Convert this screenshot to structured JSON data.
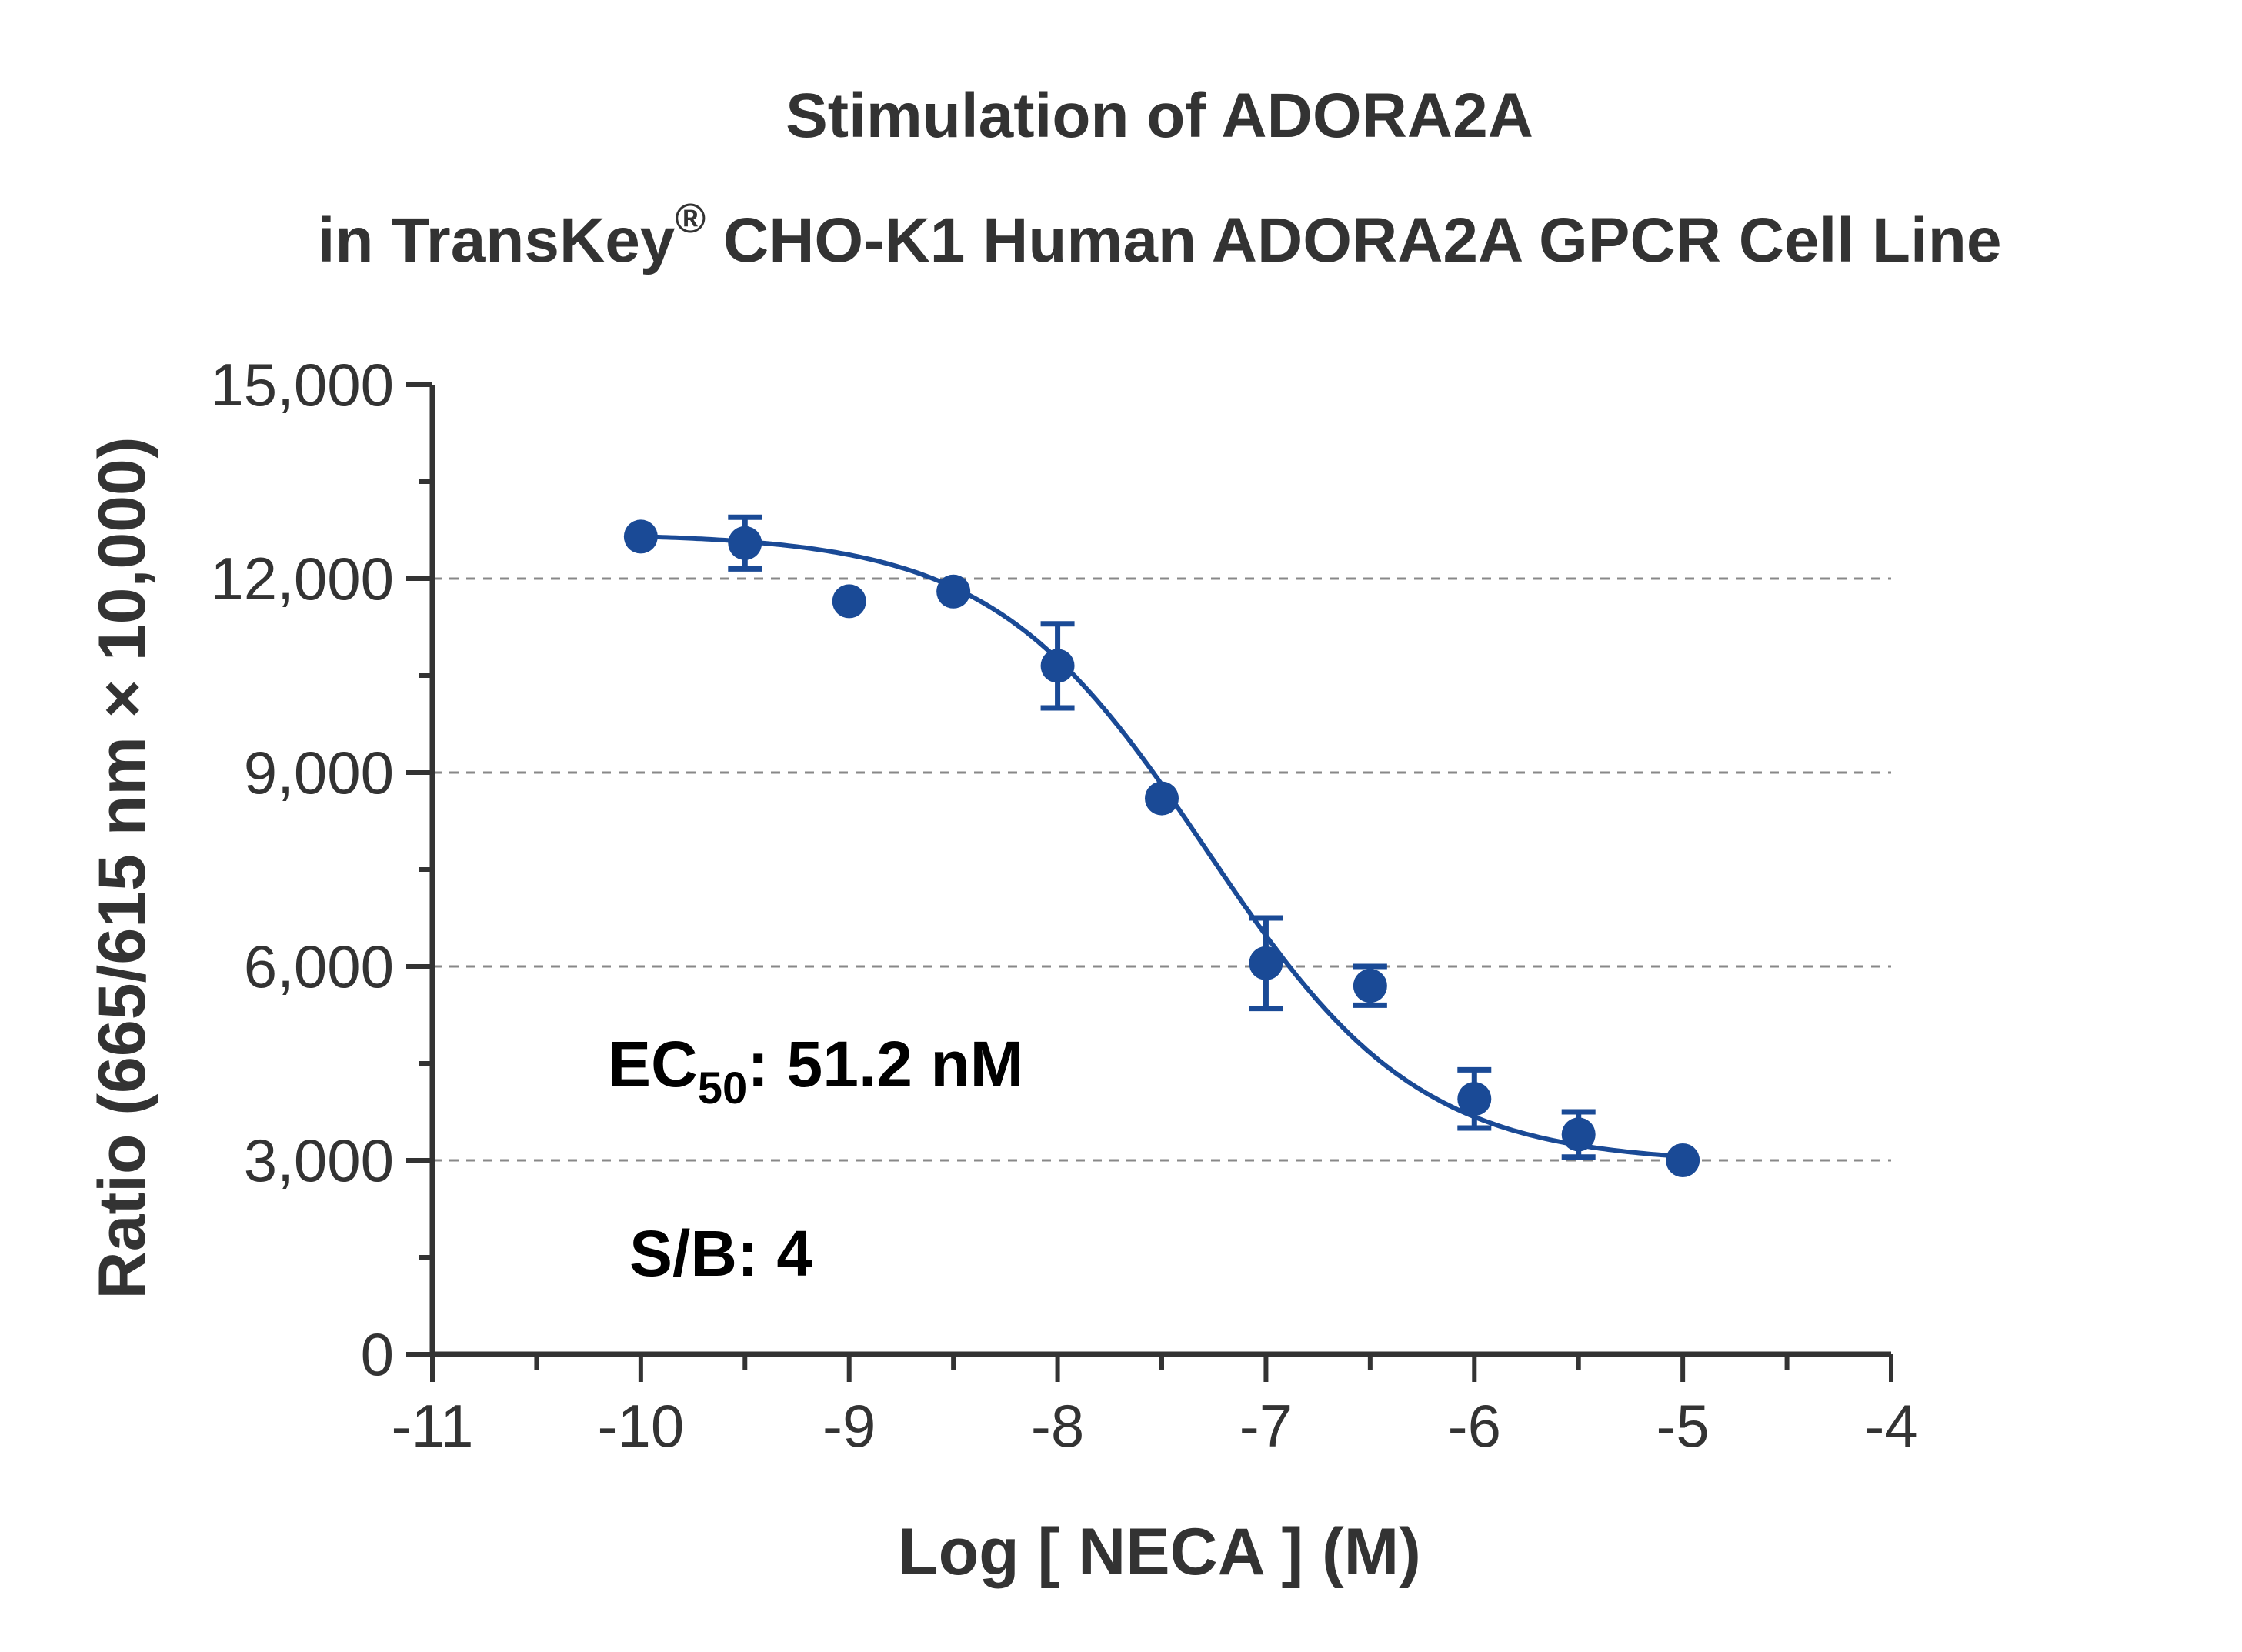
{
  "chart_data": {
    "type": "scatter",
    "title_line1": "Stimulation of  ADORA2A",
    "title_line2_pre": "in TransKey",
    "title_line2_sup": "®",
    "title_line2_post": " CHO-K1 Human ADORA2A GPCR Cell Line",
    "xlabel": "Log [ NECA ]  (M)",
    "ylabel": "Ratio (665/615 nm × 10,000)",
    "xlim": [
      -11,
      -4
    ],
    "ylim": [
      0,
      15000
    ],
    "xticks": [
      -11,
      -10,
      -9,
      -8,
      -7,
      -6,
      -5,
      -4
    ],
    "xtick_labels": [
      "-11",
      "-10",
      "-9",
      "-8",
      "-7",
      "-6",
      "-5",
      "-4"
    ],
    "yticks": [
      0,
      3000,
      6000,
      9000,
      12000,
      15000
    ],
    "ytick_labels": [
      "0",
      "3,000",
      "6,000",
      "9,000",
      "12,000",
      "15,000"
    ],
    "grid_y": [
      3000,
      6000,
      9000,
      12000
    ],
    "series": [
      {
        "color": "#1a4a96",
        "x": [
          -10,
          -9.5,
          -9,
          -8.5,
          -8,
          -7.5,
          -7,
          -6.5,
          -6,
          -5.5,
          -5
        ],
        "y": [
          12650,
          12550,
          11650,
          11800,
          10650,
          8600,
          6050,
          5700,
          3950,
          3400,
          3000
        ],
        "error": [
          0,
          400,
          0,
          0,
          650,
          0,
          700,
          300,
          450,
          350,
          0
        ]
      }
    ],
    "fit": {
      "model": "4PL",
      "top": 12700,
      "bottom": 2950,
      "log_ec50": -7.29,
      "hill": 0.85,
      "x_range": [
        -10,
        -5
      ]
    },
    "annotations": {
      "ec50_prefix": "EC",
      "ec50_sub": "50",
      "ec50_value": ": 51.2 nM",
      "sb": "S/B: 4"
    }
  }
}
